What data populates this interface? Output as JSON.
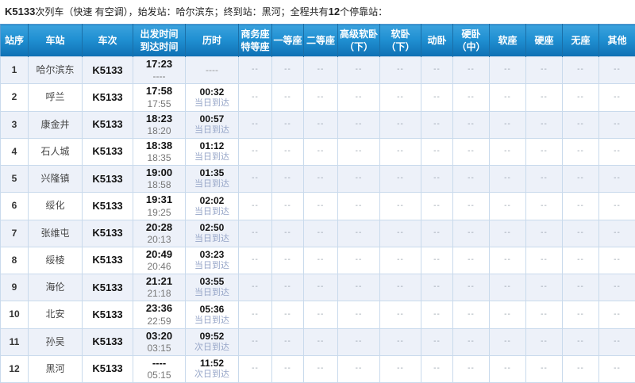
{
  "page": {
    "title": {
      "train_no": "K5133",
      "mid": "次列车（快速 有空调），始发站：哈尔滨东；终到站：黑河；全程共有",
      "stop_count": "12",
      "tail": "个停靠站："
    }
  },
  "table": {
    "columns": [
      {
        "key": "seq",
        "label": [
          "站序"
        ]
      },
      {
        "key": "station",
        "label": [
          "车站"
        ]
      },
      {
        "key": "train",
        "label": [
          "车次"
        ]
      },
      {
        "key": "times",
        "label": [
          "出发时间",
          "到达时间"
        ]
      },
      {
        "key": "duration",
        "label": [
          "历时"
        ]
      },
      {
        "key": "seat_business",
        "label": [
          "商务座",
          "特等座"
        ]
      },
      {
        "key": "seat_first",
        "label": [
          "一等座"
        ]
      },
      {
        "key": "seat_second",
        "label": [
          "二等座"
        ]
      },
      {
        "key": "seat_deluxe_soft",
        "label": [
          "高级软卧",
          "（下）"
        ]
      },
      {
        "key": "seat_soft_sleeper",
        "label": [
          "软卧",
          "（下）"
        ]
      },
      {
        "key": "seat_moving",
        "label": [
          "动卧"
        ]
      },
      {
        "key": "seat_hard_sleeper",
        "label": [
          "硬卧",
          "（中）"
        ]
      },
      {
        "key": "seat_soft",
        "label": [
          "软座"
        ]
      },
      {
        "key": "seat_hard",
        "label": [
          "硬座"
        ]
      },
      {
        "key": "seat_no",
        "label": [
          "无座"
        ]
      },
      {
        "key": "seat_other",
        "label": [
          "其他"
        ]
      }
    ],
    "seat_placeholder": "--",
    "rows": [
      {
        "seq": "1",
        "station": "哈尔滨东",
        "train": "K5133",
        "depart": "17:23",
        "arrive": "----",
        "duration": "----",
        "arrival_day": ""
      },
      {
        "seq": "2",
        "station": "呼兰",
        "train": "K5133",
        "depart": "17:58",
        "arrive": "17:55",
        "duration": "00:32",
        "arrival_day": "当日到达"
      },
      {
        "seq": "3",
        "station": "康金井",
        "train": "K5133",
        "depart": "18:23",
        "arrive": "18:20",
        "duration": "00:57",
        "arrival_day": "当日到达"
      },
      {
        "seq": "4",
        "station": "石人城",
        "train": "K5133",
        "depart": "18:38",
        "arrive": "18:35",
        "duration": "01:12",
        "arrival_day": "当日到达"
      },
      {
        "seq": "5",
        "station": "兴隆镇",
        "train": "K5133",
        "depart": "19:00",
        "arrive": "18:58",
        "duration": "01:35",
        "arrival_day": "当日到达"
      },
      {
        "seq": "6",
        "station": "绥化",
        "train": "K5133",
        "depart": "19:31",
        "arrive": "19:25",
        "duration": "02:02",
        "arrival_day": "当日到达"
      },
      {
        "seq": "7",
        "station": "张维屯",
        "train": "K5133",
        "depart": "20:28",
        "arrive": "20:13",
        "duration": "02:50",
        "arrival_day": "当日到达"
      },
      {
        "seq": "8",
        "station": "绥棱",
        "train": "K5133",
        "depart": "20:49",
        "arrive": "20:46",
        "duration": "03:23",
        "arrival_day": "当日到达"
      },
      {
        "seq": "9",
        "station": "海伦",
        "train": "K5133",
        "depart": "21:21",
        "arrive": "21:18",
        "duration": "03:55",
        "arrival_day": "当日到达"
      },
      {
        "seq": "10",
        "station": "北安",
        "train": "K5133",
        "depart": "23:36",
        "arrive": "22:59",
        "duration": "05:36",
        "arrival_day": "当日到达"
      },
      {
        "seq": "11",
        "station": "孙吴",
        "train": "K5133",
        "depart": "03:20",
        "arrive": "03:15",
        "duration": "09:52",
        "arrival_day": "次日到达"
      },
      {
        "seq": "12",
        "station": "黑河",
        "train": "K5133",
        "depart": "----",
        "arrive": "05:15",
        "duration": "11:52",
        "arrival_day": "次日到达"
      }
    ]
  },
  "colors": {
    "header_top": "#3ba2dd",
    "header_bottom": "#0f70b3",
    "row_alt": "#edf1f9",
    "cell_border": "#c9daec",
    "outer_border": "#5b9bd1",
    "day_label": "#97a6c8"
  }
}
